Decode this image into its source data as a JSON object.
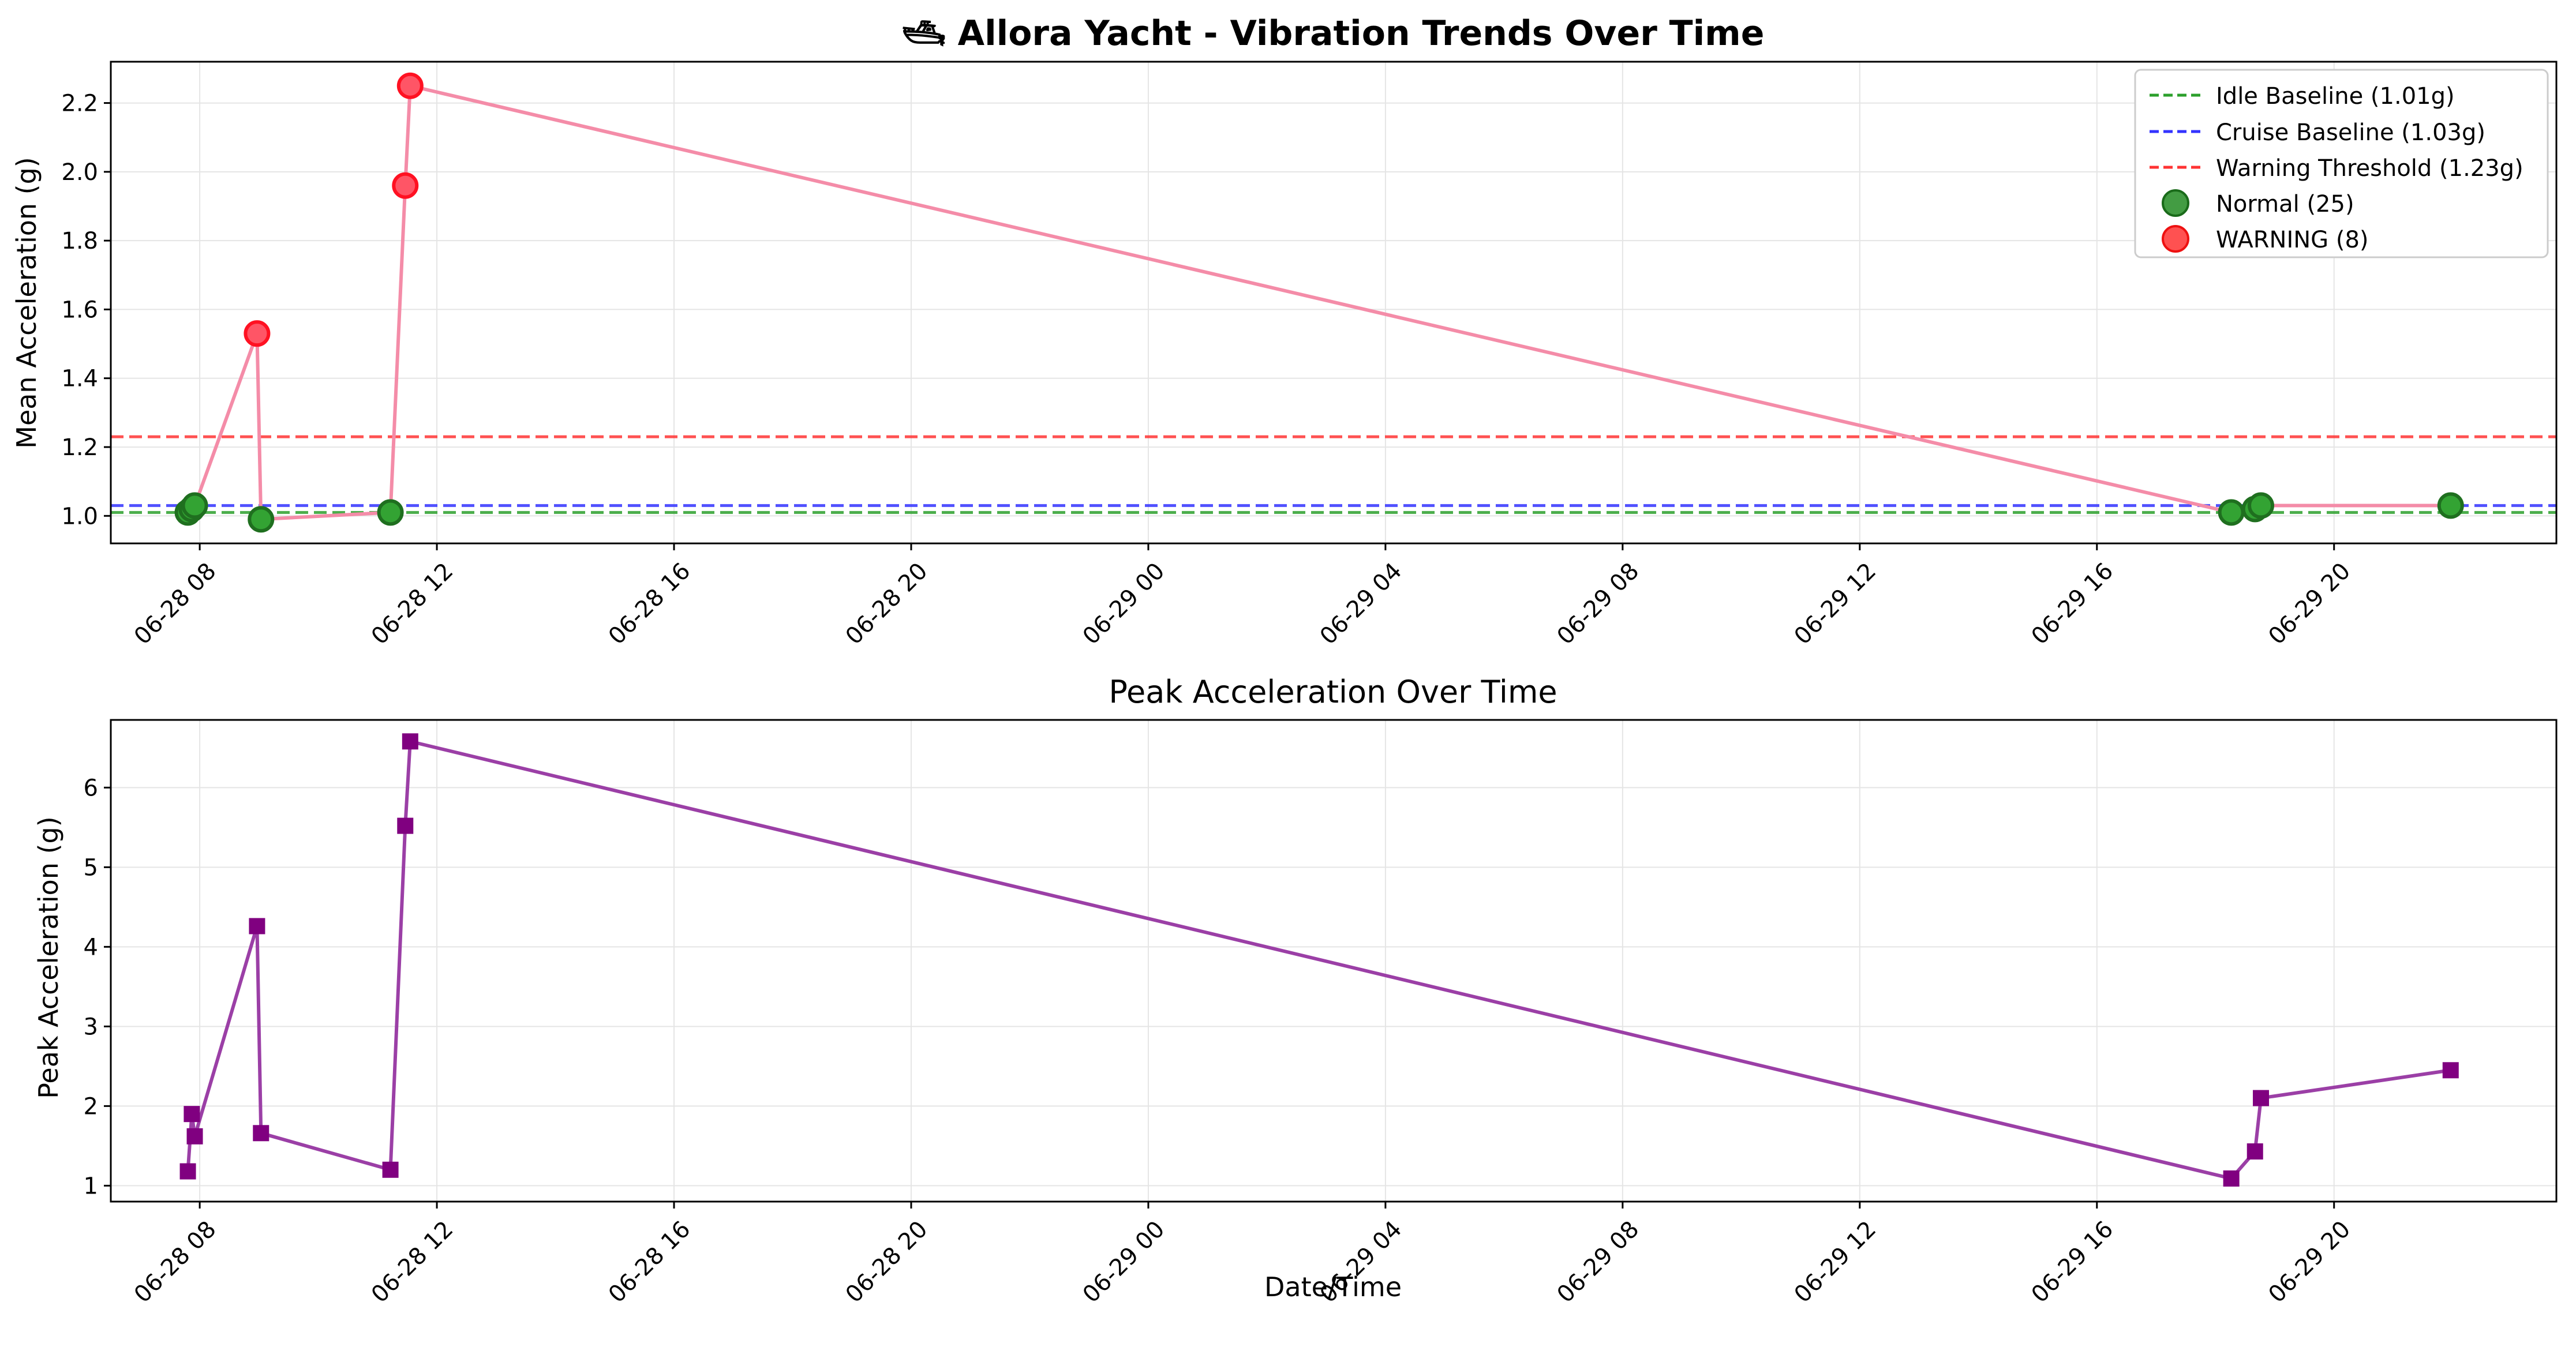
{
  "chart_data": [
    {
      "type": "line",
      "title": "🛥 Allora Yacht - Vibration Trends Over Time",
      "xlabel": "",
      "ylabel": "Mean Acceleration (g)",
      "xlim": [
        "2024-06-28 06:30",
        "2024-06-29 23:45"
      ],
      "ylim": [
        0.92,
        2.32
      ],
      "xticks": [
        {
          "t": "2024-06-28 08:00",
          "label": "06-28 08"
        },
        {
          "t": "2024-06-28 12:00",
          "label": "06-28 12"
        },
        {
          "t": "2024-06-28 16:00",
          "label": "06-28 16"
        },
        {
          "t": "2024-06-28 20:00",
          "label": "06-28 20"
        },
        {
          "t": "2024-06-29 00:00",
          "label": "06-29 00"
        },
        {
          "t": "2024-06-29 04:00",
          "label": "06-29 04"
        },
        {
          "t": "2024-06-29 08:00",
          "label": "06-29 08"
        },
        {
          "t": "2024-06-29 12:00",
          "label": "06-29 12"
        },
        {
          "t": "2024-06-29 16:00",
          "label": "06-29 16"
        },
        {
          "t": "2024-06-29 20:00",
          "label": "06-29 20"
        }
      ],
      "yticks": [
        1.0,
        1.2,
        1.4,
        1.6,
        1.8,
        2.0,
        2.2
      ],
      "grid": true,
      "legend_position": "top-right",
      "line_color": "#f48ca8",
      "series": [
        {
          "x": [
            "2024-06-28 07:48",
            "2024-06-28 07:52",
            "2024-06-28 07:55",
            "2024-06-28 08:58",
            "2024-06-28 09:02",
            "2024-06-28 11:13",
            "2024-06-28 11:28",
            "2024-06-28 11:33",
            "2024-06-29 18:16",
            "2024-06-29 18:40",
            "2024-06-29 18:46",
            "2024-06-29 21:58"
          ],
          "values": [
            1.01,
            1.02,
            1.03,
            1.53,
            0.99,
            1.01,
            1.96,
            2.25,
            1.01,
            1.02,
            1.03,
            1.03
          ],
          "status": [
            "Normal",
            "Normal",
            "Normal",
            "WARNING",
            "Normal",
            "Normal",
            "WARNING",
            "WARNING",
            "Normal",
            "Normal",
            "Normal",
            "Normal"
          ]
        }
      ],
      "reference_lines": [
        {
          "name": "Idle Baseline (1.01g)",
          "value": 1.01,
          "color": "#2ca02c"
        },
        {
          "name": "Cruise Baseline (1.03g)",
          "value": 1.03,
          "color": "#3333ff"
        },
        {
          "name": "Warning Threshold (1.23g)",
          "value": 1.23,
          "color": "#ff3333"
        }
      ],
      "legend": [
        {
          "label": "Idle Baseline (1.01g)",
          "kind": "dashed",
          "color": "#2ca02c"
        },
        {
          "label": "Cruise Baseline (1.03g)",
          "kind": "dashed",
          "color": "#3333ff"
        },
        {
          "label": "Warning Threshold (1.23g)",
          "kind": "dashed",
          "color": "#ff3333"
        },
        {
          "label": "Normal (25)",
          "kind": "dot",
          "color": "#228b22",
          "edge": "#1a6b1a"
        },
        {
          "label": "WARNING (8)",
          "kind": "dot",
          "color": "#ff3333",
          "edge": "#ee1111"
        }
      ]
    },
    {
      "type": "line",
      "title": "Peak Acceleration Over Time",
      "xlabel": "Date/Time",
      "ylabel": "Peak Acceleration (g)",
      "xlim": [
        "2024-06-28 06:30",
        "2024-06-29 23:45"
      ],
      "ylim": [
        0.8,
        6.85
      ],
      "xticks": [
        {
          "t": "2024-06-28 08:00",
          "label": "06-28 08"
        },
        {
          "t": "2024-06-28 12:00",
          "label": "06-28 12"
        },
        {
          "t": "2024-06-28 16:00",
          "label": "06-28 16"
        },
        {
          "t": "2024-06-28 20:00",
          "label": "06-28 20"
        },
        {
          "t": "2024-06-29 00:00",
          "label": "06-29 00"
        },
        {
          "t": "2024-06-29 04:00",
          "label": "06-29 04"
        },
        {
          "t": "2024-06-29 08:00",
          "label": "06-29 08"
        },
        {
          "t": "2024-06-29 12:00",
          "label": "06-29 12"
        },
        {
          "t": "2024-06-29 16:00",
          "label": "06-29 16"
        },
        {
          "t": "2024-06-29 20:00",
          "label": "06-29 20"
        }
      ],
      "yticks": [
        1,
        2,
        3,
        4,
        5,
        6
      ],
      "grid": true,
      "line_color": "#9b3fa6",
      "marker_color": "#800080",
      "series": [
        {
          "x": [
            "2024-06-28 07:48",
            "2024-06-28 07:52",
            "2024-06-28 07:55",
            "2024-06-28 08:58",
            "2024-06-28 09:02",
            "2024-06-28 11:13",
            "2024-06-28 11:28",
            "2024-06-28 11:33",
            "2024-06-29 18:16",
            "2024-06-29 18:40",
            "2024-06-29 18:46",
            "2024-06-29 21:58"
          ],
          "values": [
            1.18,
            1.9,
            1.62,
            4.26,
            1.66,
            1.2,
            5.52,
            6.58,
            1.09,
            1.43,
            2.1,
            2.45
          ]
        }
      ]
    }
  ]
}
